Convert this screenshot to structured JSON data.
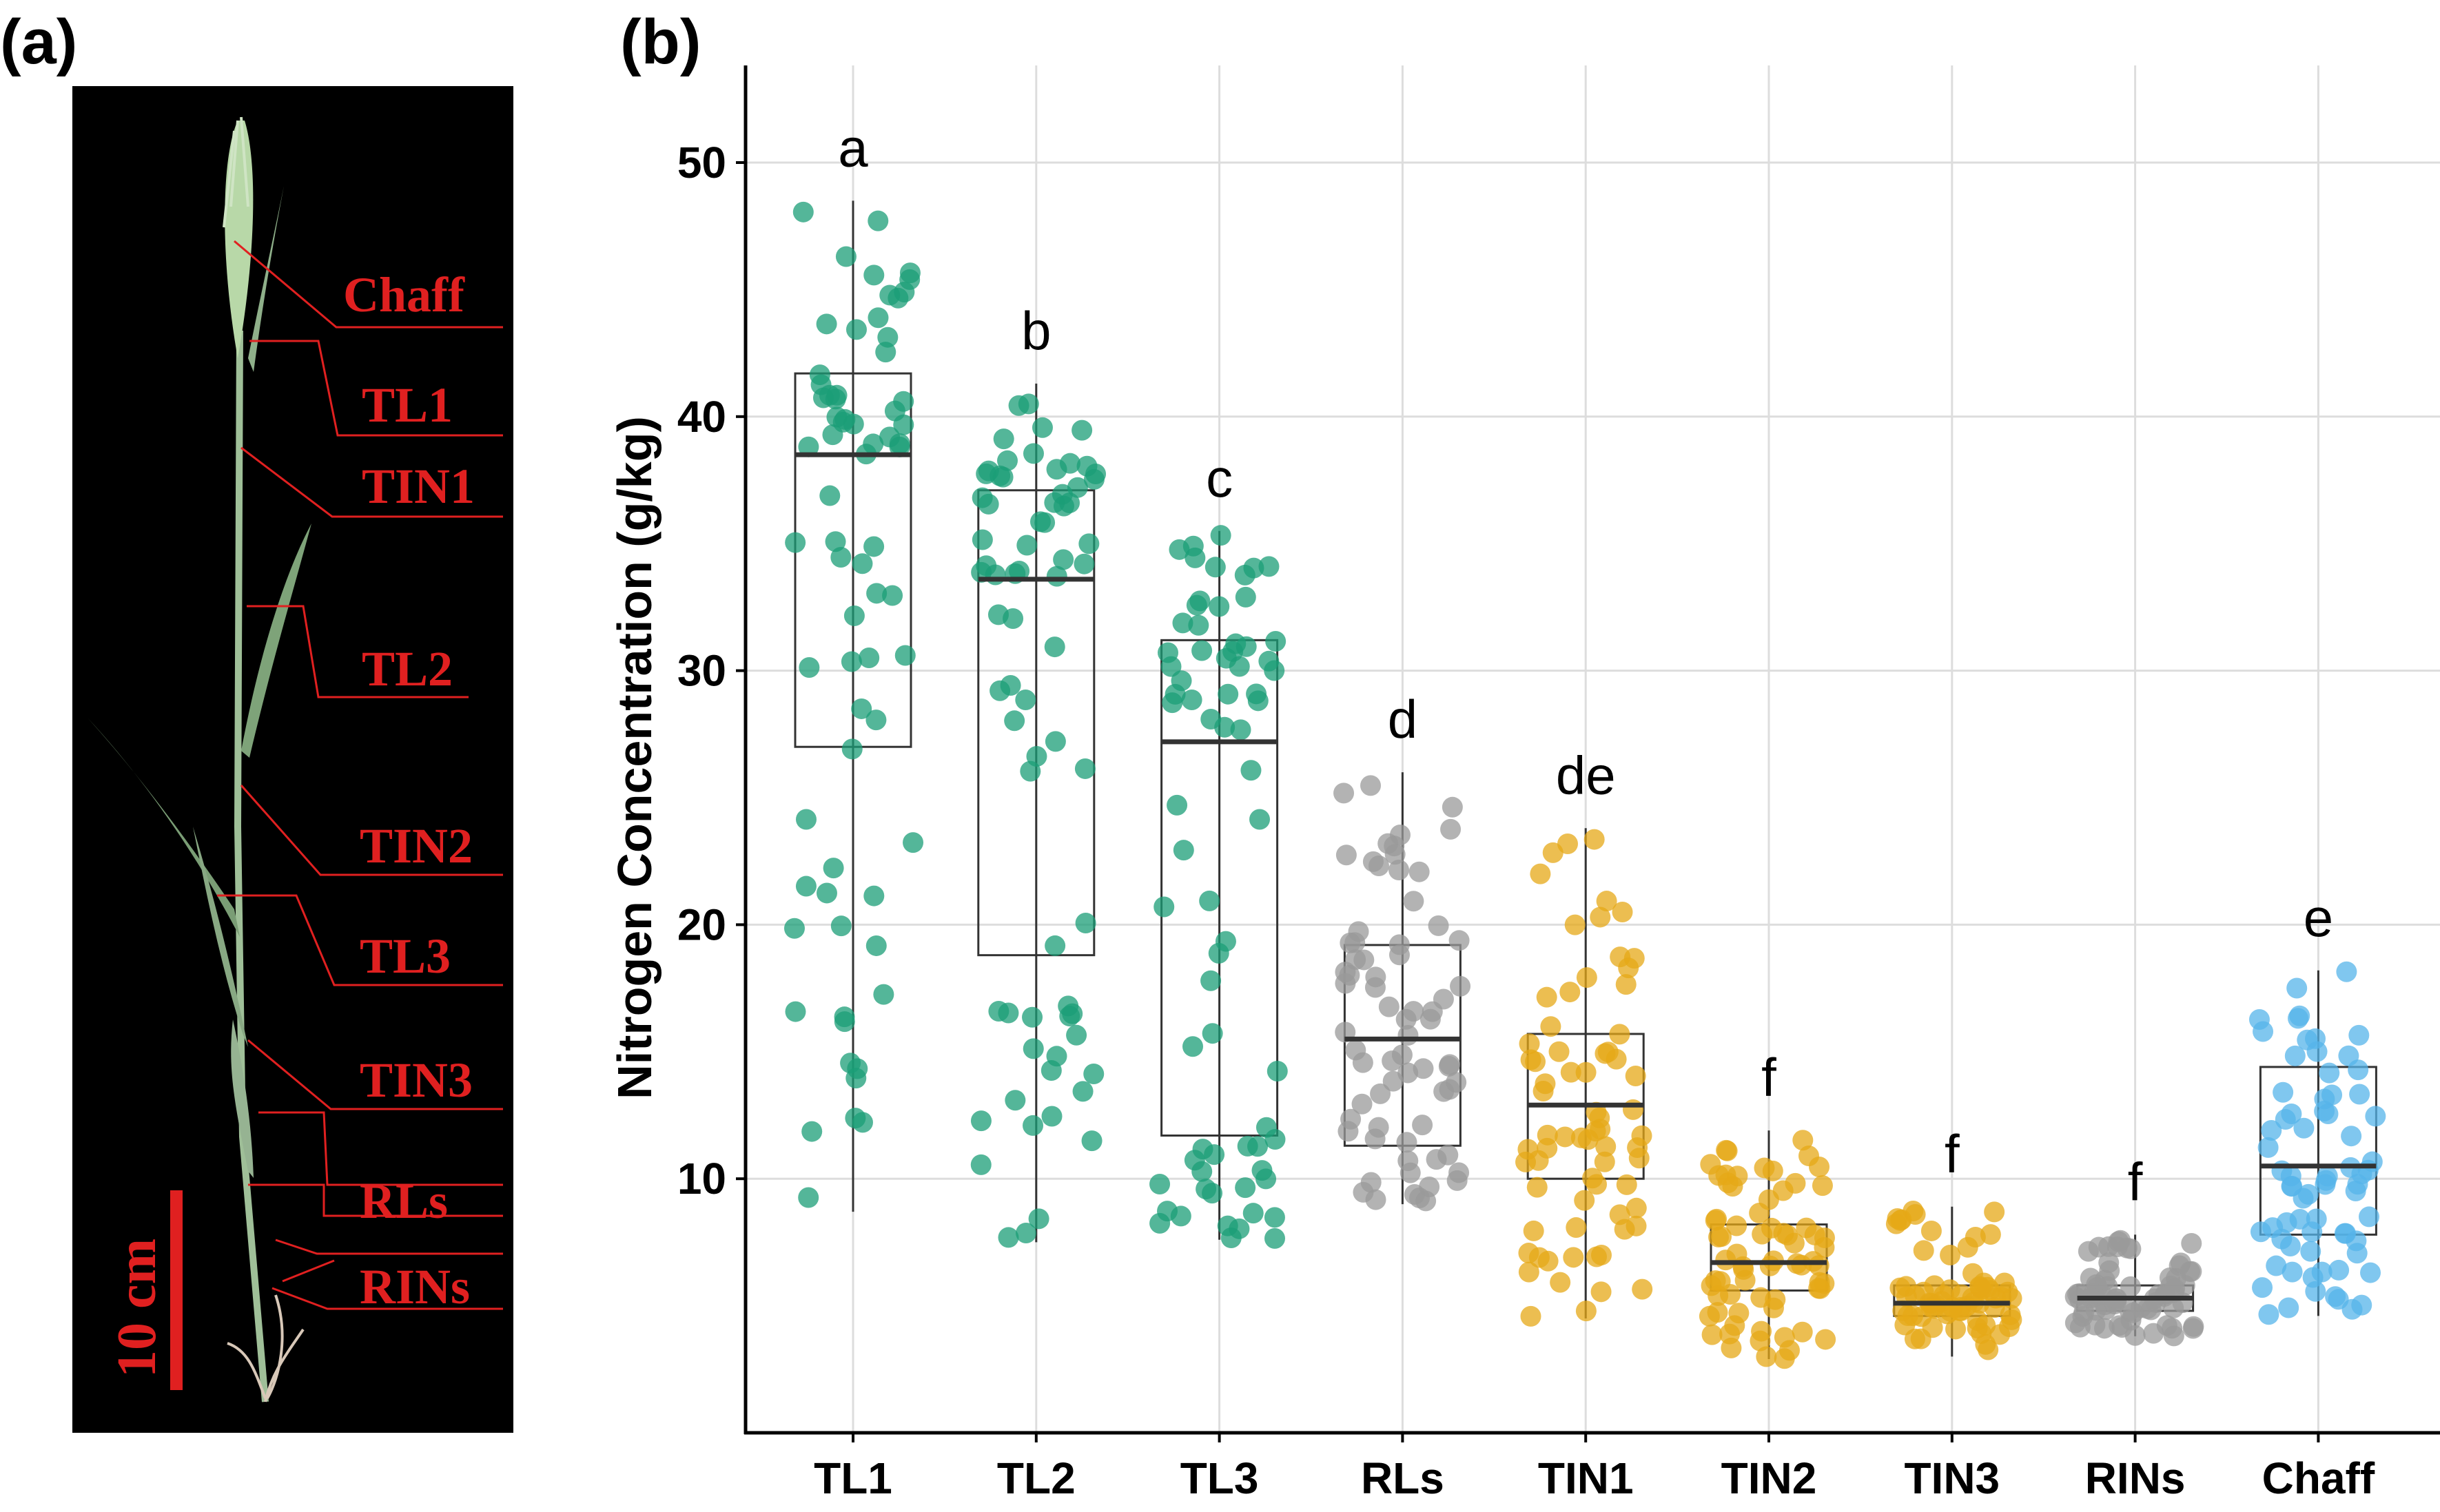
{
  "panels": {
    "a": {
      "label": "(a)",
      "scale_bar": "10 cm",
      "parts": [
        "Chaff",
        "TL1",
        "TIN1",
        "TL2",
        "TIN2",
        "TL3",
        "TIN3",
        "RLs",
        "RINs"
      ]
    },
    "b": {
      "label": "(b)"
    }
  },
  "colors": {
    "TL": "#1b9e77",
    "RL": "#999999",
    "TIN": "#e6a817",
    "Chaff": "#56b4e9",
    "box": "#333333",
    "plant_label": "#e02020",
    "photo_bg": "#000000"
  },
  "chart_data": {
    "type": "box+jitter",
    "title": "",
    "xlabel": "",
    "ylabel": "Nitrogen Concentration (g/kg)",
    "ylim": [
      0,
      54
    ],
    "yticks": [
      10,
      20,
      30,
      40,
      50
    ],
    "grid": true,
    "categories": [
      "TL1",
      "TL2",
      "TL3",
      "RLs",
      "TIN1",
      "TIN2",
      "TIN3",
      "RINs",
      "Chaff"
    ],
    "series": [
      {
        "category": "TL1",
        "color_key": "TL",
        "letter": "a",
        "min": 8.7,
        "q1": 27.0,
        "median": 38.5,
        "q3": 41.7,
        "max": 48.5,
        "n": 70
      },
      {
        "category": "TL2",
        "color_key": "TL",
        "letter": "b",
        "min": 7.5,
        "q1": 18.8,
        "median": 33.6,
        "q3": 37.1,
        "max": 41.3,
        "n": 70
      },
      {
        "category": "TL3",
        "color_key": "TL",
        "letter": "c",
        "min": 7.6,
        "q1": 11.7,
        "median": 27.2,
        "q3": 31.2,
        "max": 35.5,
        "n": 70
      },
      {
        "category": "RLs",
        "color_key": "RL",
        "letter": "d",
        "min": 9.0,
        "q1": 11.3,
        "median": 15.5,
        "q3": 19.2,
        "max": 26.0,
        "n": 70
      },
      {
        "category": "TIN1",
        "color_key": "TIN",
        "letter": "de",
        "min": 4.5,
        "q1": 10.0,
        "median": 12.9,
        "q3": 15.7,
        "max": 23.8,
        "n": 70
      },
      {
        "category": "TIN2",
        "color_key": "TIN",
        "letter": "f",
        "min": 2.9,
        "q1": 5.6,
        "median": 6.7,
        "q3": 8.2,
        "max": 11.9,
        "n": 70
      },
      {
        "category": "TIN3",
        "color_key": "TIN",
        "letter": "f",
        "min": 3.0,
        "q1": 4.6,
        "median": 5.1,
        "q3": 5.8,
        "max": 8.9,
        "n": 70
      },
      {
        "category": "RINs",
        "color_key": "RL",
        "letter": "f",
        "min": 3.8,
        "q1": 4.8,
        "median": 5.3,
        "q3": 5.8,
        "max": 7.8,
        "n": 70
      },
      {
        "category": "Chaff",
        "color_key": "Chaff",
        "letter": "e",
        "min": 4.6,
        "q1": 7.8,
        "median": 10.5,
        "q3": 14.4,
        "max": 18.2,
        "n": 70
      }
    ]
  }
}
